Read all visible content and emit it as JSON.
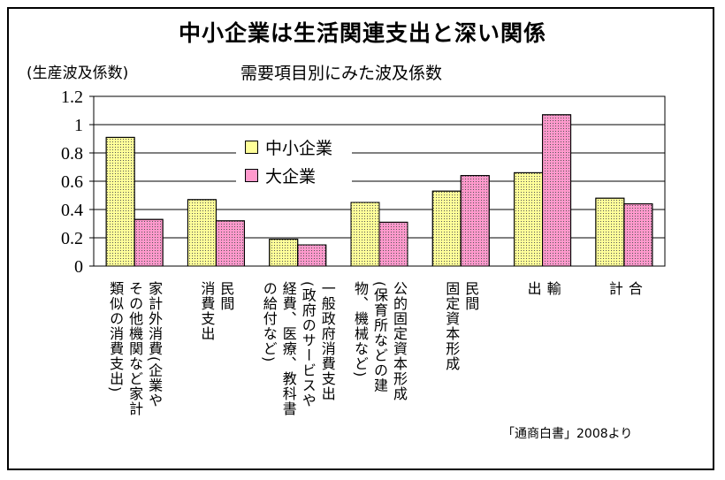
{
  "title": "中小企業は生活関連支出と深い関係",
  "unit_label": "(生産波及係数)",
  "source": "「通商白書」2008より",
  "chart_data": {
    "type": "bar",
    "title": "需要項目別にみた波及係数",
    "ylabel": "(生産波及係数)",
    "ylim": [
      0,
      1.2
    ],
    "yticks": [
      "1.2",
      "1",
      "0.8",
      "0.6",
      "0.4",
      "0.2",
      "0"
    ],
    "grid": true,
    "legend_position": "top-center",
    "categories": [
      "家計外消費(企業やその他機関など家計類似の消費支出)",
      "民間消費支出",
      "一般政府消費支出(政府のサービスや経費、医療、教科書の給付など)",
      "公的固定資本形成(保育所などの建物、機械など)",
      "民間固定資本形成",
      "輸出",
      "合計"
    ],
    "category_label_lines": [
      [
        "家計外消費(企業や",
        "その他機関など家計",
        "類似の消費支出)"
      ],
      [
        "民間",
        "消費支出"
      ],
      [
        "一般政府消費支出",
        "(政府のサービスや",
        "経費、医療、教科書",
        "の給付など)"
      ],
      [
        "公的固定資本形成",
        "(保育所などの建",
        "物、機械など)"
      ],
      [
        "民間",
        "固定資本形成"
      ],
      [
        "輸",
        "出"
      ],
      [
        "合",
        "計"
      ]
    ],
    "series": [
      {
        "name": "中小企業",
        "color": "#ffff99",
        "values": [
          0.91,
          0.47,
          0.19,
          0.45,
          0.53,
          0.66,
          0.48
        ]
      },
      {
        "name": "大企業",
        "color": "#ff99cc",
        "values": [
          0.33,
          0.32,
          0.15,
          0.31,
          0.64,
          1.07,
          0.44
        ]
      }
    ]
  }
}
